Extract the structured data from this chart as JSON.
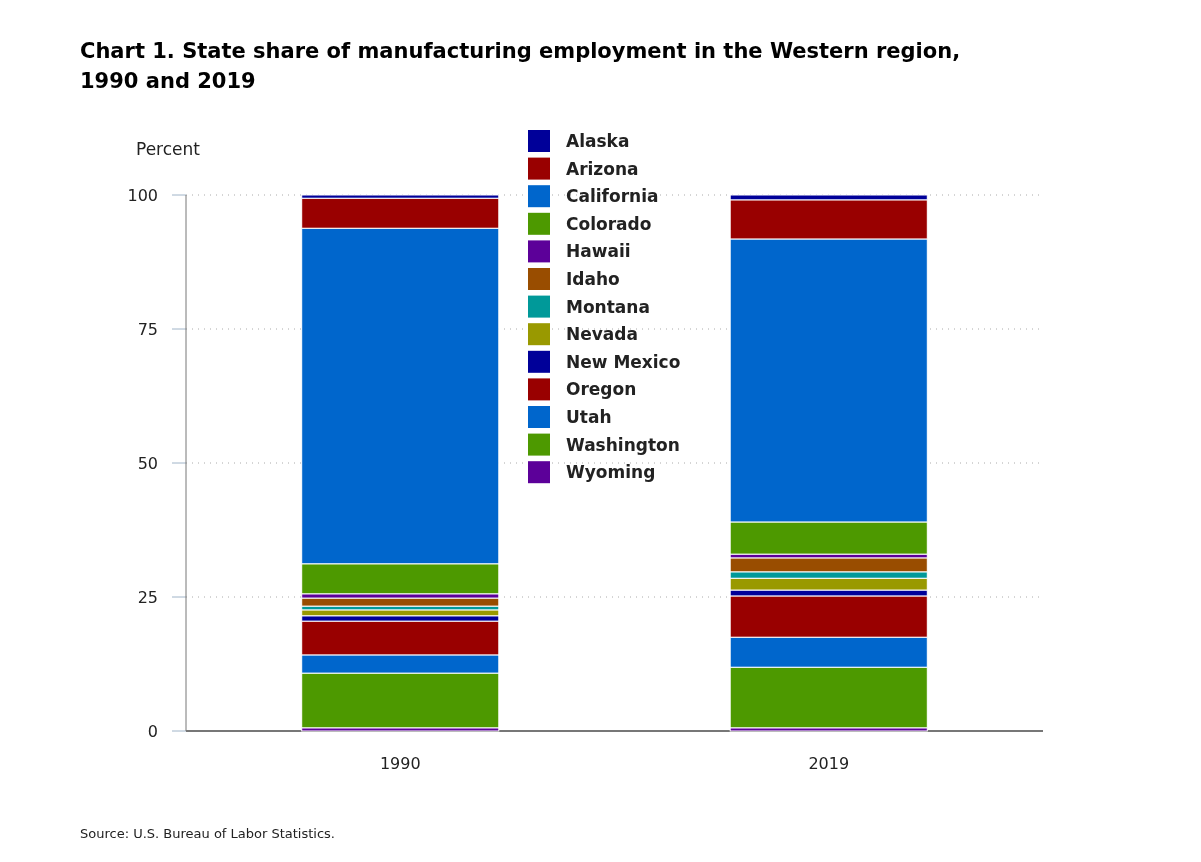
{
  "chart_data": {
    "type": "bar",
    "title": "Chart 1. State share of manufacturing employment in the Western region, 1990 and 2019",
    "ylabel": "Percent",
    "categories": [
      "1990",
      "2019"
    ],
    "stacked": true,
    "ylim": [
      0,
      100
    ],
    "yticks": [
      0,
      25,
      50,
      75,
      100
    ],
    "grid": "y",
    "legend": "top",
    "annotations": [
      "Source: U.S. Bureau of Labor Statistics."
    ],
    "series": [
      {
        "name": "Wyoming",
        "color": "#5c0099",
        "values": [
          0.6,
          0.6
        ]
      },
      {
        "name": "Washington",
        "color": "#4d9900",
        "values": [
          10.2,
          11.3
        ]
      },
      {
        "name": "Utah",
        "color": "#0066cc",
        "values": [
          3.4,
          5.6
        ]
      },
      {
        "name": "Oregon",
        "color": "#990000",
        "values": [
          6.3,
          7.7
        ]
      },
      {
        "name": "New Mexico",
        "color": "#000099",
        "values": [
          1.0,
          1.1
        ]
      },
      {
        "name": "Nevada",
        "color": "#999900",
        "values": [
          1.1,
          2.2
        ]
      },
      {
        "name": "Montana",
        "color": "#009999",
        "values": [
          0.7,
          1.2
        ]
      },
      {
        "name": "Idaho",
        "color": "#994d00",
        "values": [
          1.5,
          2.6
        ]
      },
      {
        "name": "Hawaii",
        "color": "#5c0099",
        "values": [
          0.8,
          0.7
        ]
      },
      {
        "name": "Colorado",
        "color": "#4d9900",
        "values": [
          5.6,
          6.0
        ]
      },
      {
        "name": "California",
        "color": "#0066cc",
        "values": [
          62.6,
          52.8
        ]
      },
      {
        "name": "Arizona",
        "color": "#990000",
        "values": [
          5.6,
          7.3
        ]
      },
      {
        "name": "Alaska",
        "color": "#000099",
        "values": [
          0.6,
          0.9
        ]
      }
    ]
  }
}
